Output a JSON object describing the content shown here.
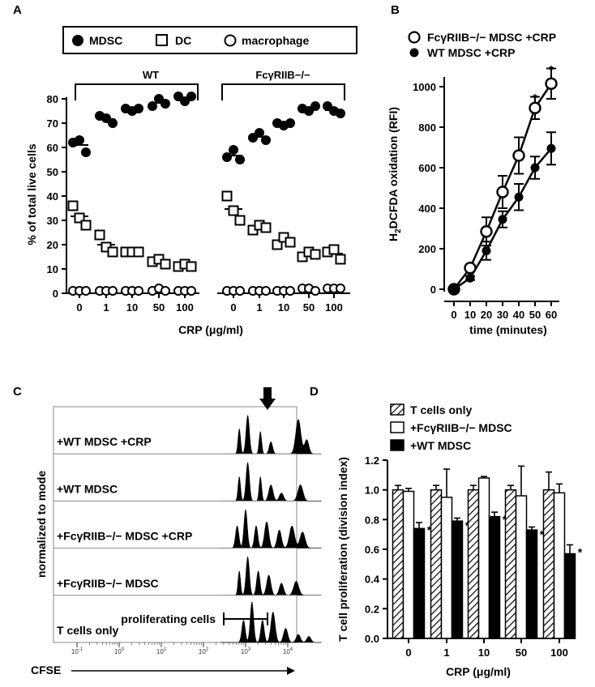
{
  "panels": {
    "A": "A",
    "B": "B",
    "C": "C",
    "D": "D"
  },
  "chart_data": [
    {
      "id": "A",
      "type": "scatter",
      "ylabel": "% of total live cells",
      "xlabel": "CRP (μg/ml)",
      "ylim": [
        0,
        85
      ],
      "yticks": [
        0,
        10,
        20,
        30,
        40,
        50,
        60,
        70,
        80
      ],
      "legend": [
        "MDSC",
        "DC",
        "macrophage"
      ],
      "groups": [
        {
          "label": "WT",
          "categories": [
            "0",
            "1",
            "10",
            "50",
            "100"
          ]
        },
        {
          "label": "FcγRIIB−/−",
          "categories": [
            "0",
            "1",
            "10",
            "50",
            "100"
          ]
        }
      ],
      "series": [
        {
          "name": "MDSC",
          "marker": "filled-circle",
          "values": [
            [
              [
                62,
                63,
                58
              ],
              [
                73,
                72,
                70
              ],
              [
                76,
                75,
                76
              ],
              [
                77,
                80,
                78
              ],
              [
                81,
                79,
                81
              ]
            ],
            [
              [
                56,
                59,
                55
              ],
              [
                64,
                66,
                63
              ],
              [
                70,
                69,
                70
              ],
              [
                76,
                75,
                77
              ],
              [
                77,
                75,
                74
              ]
            ]
          ]
        },
        {
          "name": "DC",
          "marker": "open-square",
          "values": [
            [
              [
                36,
                31,
                28
              ],
              [
                24,
                19,
                17
              ],
              [
                17,
                17,
                17
              ],
              [
                13,
                14,
                12
              ],
              [
                11,
                12,
                11
              ]
            ],
            [
              [
                40,
                34,
                30
              ],
              [
                26,
                28,
                27
              ],
              [
                20,
                23,
                21
              ],
              [
                15,
                17,
                16
              ],
              [
                17,
                18,
                14
              ]
            ]
          ]
        },
        {
          "name": "macrophage",
          "marker": "open-circle",
          "values": [
            [
              [
                1,
                1,
                1
              ],
              [
                1,
                1,
                1
              ],
              [
                1,
                1,
                1
              ],
              [
                1,
                2,
                1
              ],
              [
                1,
                1,
                1
              ]
            ],
            [
              [
                1,
                1,
                1
              ],
              [
                1,
                1,
                1
              ],
              [
                1,
                1,
                1
              ],
              [
                2,
                2,
                1
              ],
              [
                2,
                2,
                2
              ]
            ]
          ]
        }
      ]
    },
    {
      "id": "B",
      "type": "line",
      "ylabel_main": "H",
      "ylabel_sub": "2",
      "ylabel_rest": "DCFDA oxidation (RFI)",
      "xlabel": "time (minutes)",
      "x": [
        0,
        10,
        20,
        30,
        40,
        50,
        60
      ],
      "xlim": [
        0,
        60
      ],
      "ylim": [
        0,
        1000
      ],
      "yticks": [
        0,
        200,
        400,
        600,
        800,
        1000
      ],
      "significance": [
        50,
        60
      ],
      "series": [
        {
          "name": "FcγRIIB−/− MDSC +CRP",
          "marker": "open-circle",
          "values": [
            0,
            105,
            285,
            480,
            660,
            895,
            1015
          ],
          "err": [
            0,
            15,
            70,
            80,
            90,
            55,
            75
          ]
        },
        {
          "name": "WT MDSC +CRP",
          "marker": "filled-circle",
          "values": [
            0,
            55,
            190,
            345,
            455,
            600,
            695
          ],
          "err": [
            0,
            10,
            45,
            40,
            65,
            55,
            80
          ]
        }
      ]
    },
    {
      "id": "C",
      "type": "histogram-stack",
      "ylabel": "normalized to mode",
      "xlabel": "CFSE",
      "xticks": [
        "10",
        "10",
        "10",
        "10",
        "10",
        "10"
      ],
      "xtick_exp": [
        "-1",
        "0",
        "1",
        "2",
        "3",
        "4"
      ],
      "rows": [
        "+WT MDSC +CRP",
        "+WT MDSC",
        "+FcγRIIB−/− MDSC +CRP",
        "+FcγRIIB−/− MDSC",
        "T cells only"
      ],
      "gate_label": "proliferating cells"
    },
    {
      "id": "D",
      "type": "bar",
      "ylabel": "T cell proliferation (division index)",
      "xlabel": "CRP (μg/ml)",
      "categories": [
        "0",
        "1",
        "10",
        "50",
        "100"
      ],
      "ylim": [
        0,
        1.2
      ],
      "yticks": [
        "0.0",
        "0.2",
        "0.4",
        "0.6",
        "0.8",
        "1.0",
        "1.2"
      ],
      "series": [
        {
          "name": "T cells only",
          "pattern": "hatched",
          "values": [
            1.0,
            1.0,
            1.0,
            1.0,
            1.0
          ],
          "err": [
            0.03,
            0.03,
            0.03,
            0.03,
            0.12
          ]
        },
        {
          "name": "+FcγRIIB−/− MDSC",
          "pattern": "open",
          "values": [
            0.99,
            0.95,
            1.08,
            0.96,
            0.98
          ],
          "err": [
            0.02,
            0.19,
            0.01,
            0.2,
            0.06
          ]
        },
        {
          "name": "+WT MDSC",
          "pattern": "filled",
          "values": [
            0.74,
            0.79,
            0.82,
            0.73,
            0.57
          ],
          "err": [
            0.04,
            0.02,
            0.03,
            0.02,
            0.06
          ]
        }
      ],
      "significant_series": "+WT MDSC"
    }
  ],
  "sig_mark": "*"
}
